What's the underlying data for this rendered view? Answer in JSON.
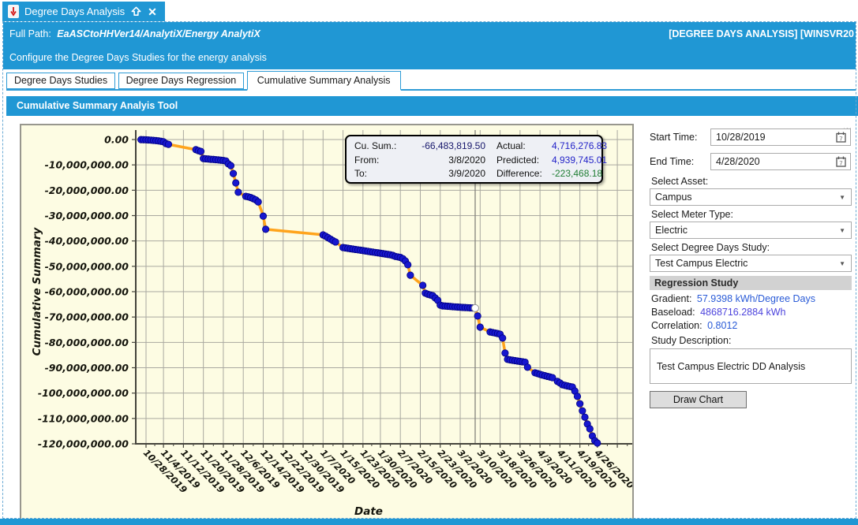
{
  "doc_tab": {
    "title": "Degree Days Analysis",
    "close_glyph": "✕"
  },
  "banner": {
    "full_path_label": "Full Path:",
    "full_path": "EaASCtoHHVer14/AnalytiX/Energy AnalytiX",
    "context_right": "[DEGREE DAYS ANALYSIS] [WINSVR20",
    "description": "Configure the Degree Days Studies for the energy analysis"
  },
  "tab_strip": {
    "tabs": [
      {
        "label": "Degree Days Studies"
      },
      {
        "label": "Degree Days Regression"
      },
      {
        "label": "Cumulative Summary Analysis"
      }
    ]
  },
  "section_header": {
    "title": "Cumulative Summary Analyis Tool"
  },
  "chart_data": {
    "type": "scatter",
    "title": "",
    "xlabel": "Date",
    "ylabel": "Cumulative Summary",
    "ylim": [
      -120000000,
      0
    ],
    "y_step": 10000000,
    "grid": true,
    "x_tick_labels": [
      "10/28/2019",
      "11/4/2019",
      "11/12/2019",
      "11/20/2019",
      "11/28/2019",
      "12/6/2019",
      "12/14/2019",
      "12/22/2019",
      "12/30/2019",
      "1/7/2020",
      "1/15/2020",
      "1/23/2020",
      "1/30/2020",
      "2/7/2020",
      "2/15/2020",
      "2/23/2020",
      "3/2/2020",
      "3/10/2020",
      "3/18/2020",
      "3/26/2020",
      "4/3/2020",
      "4/11/2020",
      "4/19/2020",
      "4/26/2020"
    ],
    "series": [
      {
        "name": "Cumulative Summary",
        "points": [
          [
            "10/26/2019",
            -50000
          ],
          [
            "10/27/2019",
            -80000
          ],
          [
            "10/28/2019",
            -120000
          ],
          [
            "10/29/2019",
            -180000
          ],
          [
            "10/30/2019",
            -250000
          ],
          [
            "10/31/2019",
            -330000
          ],
          [
            "11/1/2019",
            -430000
          ],
          [
            "11/2/2019",
            -550000
          ],
          [
            "11/3/2019",
            -700000
          ],
          [
            "11/4/2019",
            -900000
          ],
          [
            "11/5/2019",
            -1600000
          ],
          [
            "11/6/2019",
            -1900000
          ],
          [
            "11/17/2019",
            -4000000
          ],
          [
            "11/18/2019",
            -4400000
          ],
          [
            "11/19/2019",
            -4700000
          ],
          [
            "11/20/2019",
            -7500000
          ],
          [
            "11/21/2019",
            -7600000
          ],
          [
            "11/22/2019",
            -7700000
          ],
          [
            "11/23/2019",
            -7800000
          ],
          [
            "11/24/2019",
            -7850000
          ],
          [
            "11/25/2019",
            -7950000
          ],
          [
            "11/26/2019",
            -8050000
          ],
          [
            "11/27/2019",
            -8150000
          ],
          [
            "11/28/2019",
            -8250000
          ],
          [
            "11/29/2019",
            -8450000
          ],
          [
            "11/30/2019",
            -9600000
          ],
          [
            "12/1/2019",
            -10300000
          ],
          [
            "12/2/2019",
            -13400000
          ],
          [
            "12/3/2019",
            -17100000
          ],
          [
            "12/4/2019",
            -20800000
          ],
          [
            "12/7/2019",
            -22400000
          ],
          [
            "12/8/2019",
            -22600000
          ],
          [
            "12/9/2019",
            -22900000
          ],
          [
            "12/10/2019",
            -23300000
          ],
          [
            "12/11/2019",
            -23800000
          ],
          [
            "12/12/2019",
            -24600000
          ],
          [
            "12/14/2019",
            -30200000
          ],
          [
            "12/15/2019",
            -35400000
          ],
          [
            "1/7/2020",
            -37600000
          ],
          [
            "1/8/2020",
            -38100000
          ],
          [
            "1/9/2020",
            -38700000
          ],
          [
            "1/10/2020",
            -39300000
          ],
          [
            "1/11/2020",
            -39900000
          ],
          [
            "1/12/2020",
            -40400000
          ],
          [
            "1/15/2020",
            -42600000
          ],
          [
            "1/16/2020",
            -42750000
          ],
          [
            "1/17/2020",
            -42900000
          ],
          [
            "1/18/2020",
            -43050000
          ],
          [
            "1/19/2020",
            -43200000
          ],
          [
            "1/20/2020",
            -43350000
          ],
          [
            "1/21/2020",
            -43500000
          ],
          [
            "1/22/2020",
            -43650000
          ],
          [
            "1/23/2020",
            -43800000
          ],
          [
            "1/24/2020",
            -43950000
          ],
          [
            "1/25/2020",
            -44100000
          ],
          [
            "1/26/2020",
            -44250000
          ],
          [
            "1/27/2020",
            -44400000
          ],
          [
            "1/28/2020",
            -44550000
          ],
          [
            "1/29/2020",
            -44700000
          ],
          [
            "1/30/2020",
            -44850000
          ],
          [
            "1/31/2020",
            -45000000
          ],
          [
            "2/1/2020",
            -45150000
          ],
          [
            "2/2/2020",
            -45300000
          ],
          [
            "2/3/2020",
            -45450000
          ],
          [
            "2/4/2020",
            -45700000
          ],
          [
            "2/5/2020",
            -46100000
          ],
          [
            "2/6/2020",
            -46300000
          ],
          [
            "2/7/2020",
            -46500000
          ],
          [
            "2/8/2020",
            -47000000
          ],
          [
            "2/9/2020",
            -47900000
          ],
          [
            "2/10/2020",
            -49400000
          ],
          [
            "2/11/2020",
            -53500000
          ],
          [
            "2/16/2020",
            -57500000
          ],
          [
            "2/17/2020",
            -60600000
          ],
          [
            "2/18/2020",
            -61000000
          ],
          [
            "2/19/2020",
            -61300000
          ],
          [
            "2/20/2020",
            -61600000
          ],
          [
            "2/21/2020",
            -62500000
          ],
          [
            "2/22/2020",
            -63400000
          ],
          [
            "2/23/2020",
            -65300000
          ],
          [
            "2/24/2020",
            -65600000
          ],
          [
            "2/25/2020",
            -65680000
          ],
          [
            "2/26/2020",
            -65760000
          ],
          [
            "2/27/2020",
            -65840000
          ],
          [
            "2/28/2020",
            -65920000
          ],
          [
            "2/29/2020",
            -66000000
          ],
          [
            "3/1/2020",
            -66070000
          ],
          [
            "3/2/2020",
            -66140000
          ],
          [
            "3/3/2020",
            -66200000
          ],
          [
            "3/4/2020",
            -66260000
          ],
          [
            "3/5/2020",
            -66320000
          ],
          [
            "3/6/2020",
            -66380000
          ],
          [
            "3/7/2020",
            -66430000
          ],
          [
            "3/8/2020",
            -66483819.5
          ],
          [
            "3/9/2020",
            -69600000
          ],
          [
            "3/10/2020",
            -74000000
          ],
          [
            "3/14/2020",
            -75900000
          ],
          [
            "3/15/2020",
            -76100000
          ],
          [
            "3/16/2020",
            -76300000
          ],
          [
            "3/17/2020",
            -76500000
          ],
          [
            "3/18/2020",
            -76800000
          ],
          [
            "3/19/2020",
            -78300000
          ],
          [
            "3/20/2020",
            -84200000
          ],
          [
            "3/21/2020",
            -86700000
          ],
          [
            "3/22/2020",
            -86900000
          ],
          [
            "3/23/2020",
            -87050000
          ],
          [
            "3/24/2020",
            -87200000
          ],
          [
            "3/25/2020",
            -87350000
          ],
          [
            "3/26/2020",
            -87500000
          ],
          [
            "3/27/2020",
            -87650000
          ],
          [
            "3/28/2020",
            -87800000
          ],
          [
            "3/29/2020",
            -89800000
          ],
          [
            "4/1/2020",
            -92000000
          ],
          [
            "4/2/2020",
            -92300000
          ],
          [
            "4/3/2020",
            -92600000
          ],
          [
            "4/4/2020",
            -92900000
          ],
          [
            "4/5/2020",
            -93150000
          ],
          [
            "4/6/2020",
            -93400000
          ],
          [
            "4/7/2020",
            -93650000
          ],
          [
            "4/8/2020",
            -93900000
          ],
          [
            "4/10/2020",
            -95400000
          ],
          [
            "4/11/2020",
            -96000000
          ],
          [
            "4/12/2020",
            -96700000
          ],
          [
            "4/13/2020",
            -96950000
          ],
          [
            "4/14/2020",
            -97200000
          ],
          [
            "4/15/2020",
            -97400000
          ],
          [
            "4/16/2020",
            -97600000
          ],
          [
            "4/17/2020",
            -99200000
          ],
          [
            "4/18/2020",
            -101300000
          ],
          [
            "4/19/2020",
            -104200000
          ],
          [
            "4/20/2020",
            -107000000
          ],
          [
            "4/21/2020",
            -109500000
          ],
          [
            "4/22/2020",
            -112200000
          ],
          [
            "4/23/2020",
            -114100000
          ],
          [
            "4/24/2020",
            -116900000
          ],
          [
            "4/25/2020",
            -118800000
          ],
          [
            "4/26/2020",
            -119700000
          ]
        ]
      }
    ],
    "highlight_point": {
      "date": "3/8/2020",
      "value": -66483819.5
    },
    "crosshair_date": "3/8/2020",
    "tooltip": {
      "cu_sum_label": "Cu. Sum.:",
      "cu_sum": "-66,483,819.50",
      "from_label": "From:",
      "from": "3/8/2020",
      "to_label": "To:",
      "to": "3/9/2020",
      "actual_label": "Actual:",
      "actual": "4,716,276.83",
      "predicted_label": "Predicted:",
      "predicted": "4,939,745.01",
      "difference_label": "Difference:",
      "difference": "-223,468.18"
    },
    "colors": {
      "point": "#1717cf",
      "point_stroke": "#000080",
      "line": "#ffa41c",
      "background": "#fdfce3",
      "grid": "#a9a8a0",
      "axis": "#45443c",
      "highlight": "#ffffff",
      "crosshair": "#84837c"
    }
  },
  "panel": {
    "start_time": {
      "label": "Start Time:",
      "value": "10/28/2019"
    },
    "end_time": {
      "label": "End Time:",
      "value": "4/28/2020"
    },
    "select_asset": {
      "label": "Select Asset:",
      "value": "Campus"
    },
    "select_meter_type": {
      "label": "Select Meter Type:",
      "value": "Electric"
    },
    "select_dd_study": {
      "label": "Select Degree Days Study:",
      "value": "Test Campus Electric"
    },
    "regression": {
      "header": "Regression Study",
      "gradient_label": "Gradient:",
      "gradient_value": "57.9398 kWh/Degree Days",
      "baseload_label": "Baseload:",
      "baseload_value": "4868716.2884 kWh",
      "correlation_label": "Correlation:",
      "correlation_value": "0.8012"
    },
    "study_description": {
      "label": "Study Description:",
      "value": "Test Campus Electric DD Analysis"
    },
    "draw_chart_label": "Draw Chart"
  },
  "icons": {
    "dropdown_glyph": "▼"
  }
}
